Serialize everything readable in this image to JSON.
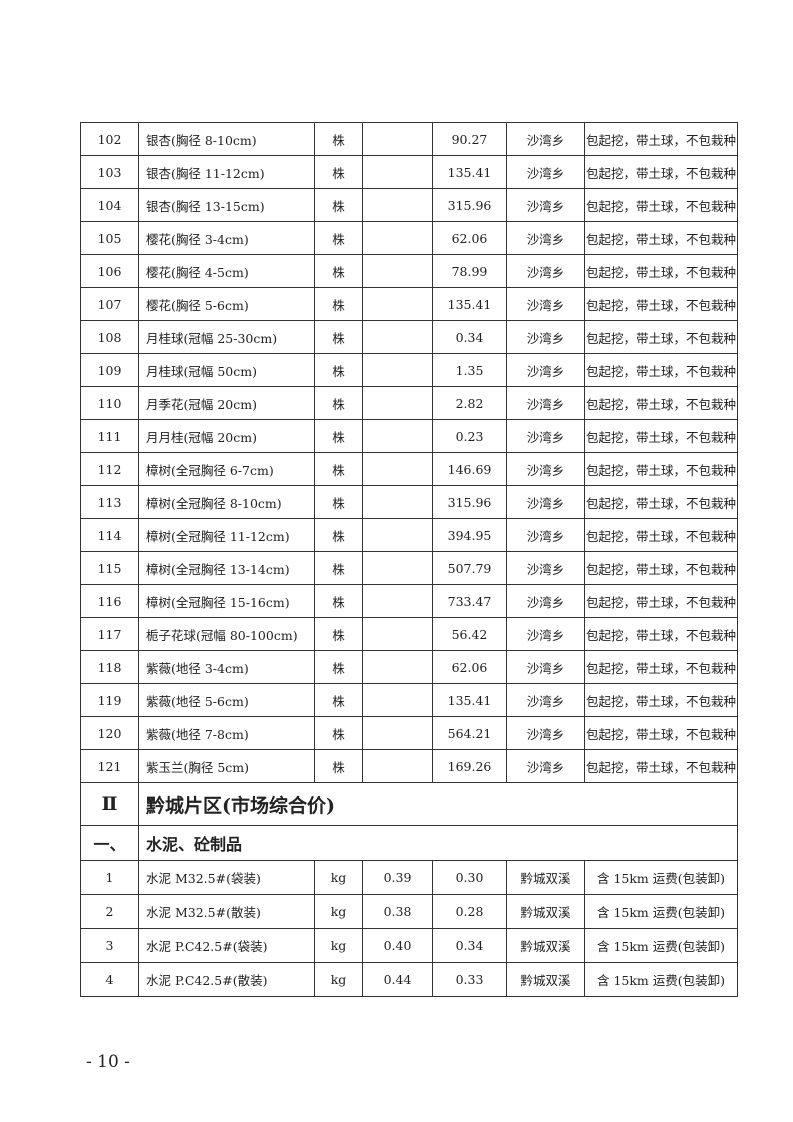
{
  "rows_a": [
    {
      "no": "102",
      "name": "银杏(胸径 8-10cm)",
      "unit": "株",
      "price1": "",
      "price2": "90.27",
      "place": "沙湾乡",
      "note": "包起挖，带土球，不包栽种"
    },
    {
      "no": "103",
      "name": "银杏(胸径 11-12cm)",
      "unit": "株",
      "price1": "",
      "price2": "135.41",
      "place": "沙湾乡",
      "note": "包起挖，带土球，不包栽种"
    },
    {
      "no": "104",
      "name": "银杏(胸径 13-15cm)",
      "unit": "株",
      "price1": "",
      "price2": "315.96",
      "place": "沙湾乡",
      "note": "包起挖，带土球，不包栽种"
    },
    {
      "no": "105",
      "name": "樱花(胸径 3-4cm)",
      "unit": "株",
      "price1": "",
      "price2": "62.06",
      "place": "沙湾乡",
      "note": "包起挖，带土球，不包栽种"
    },
    {
      "no": "106",
      "name": "樱花(胸径 4-5cm)",
      "unit": "株",
      "price1": "",
      "price2": "78.99",
      "place": "沙湾乡",
      "note": "包起挖，带土球，不包栽种"
    },
    {
      "no": "107",
      "name": "樱花(胸径 5-6cm)",
      "unit": "株",
      "price1": "",
      "price2": "135.41",
      "place": "沙湾乡",
      "note": "包起挖，带土球，不包栽种"
    },
    {
      "no": "108",
      "name": "月桂球(冠幅 25-30cm)",
      "unit": "株",
      "price1": "",
      "price2": "0.34",
      "place": "沙湾乡",
      "note": "包起挖，带土球，不包栽种"
    },
    {
      "no": "109",
      "name": "月桂球(冠幅 50cm)",
      "unit": "株",
      "price1": "",
      "price2": "1.35",
      "place": "沙湾乡",
      "note": "包起挖，带土球，不包栽种"
    },
    {
      "no": "110",
      "name": "月季花(冠幅 20cm)",
      "unit": "株",
      "price1": "",
      "price2": "2.82",
      "place": "沙湾乡",
      "note": "包起挖，带土球，不包栽种"
    },
    {
      "no": "111",
      "name": "月月桂(冠幅 20cm)",
      "unit": "株",
      "price1": "",
      "price2": "0.23",
      "place": "沙湾乡",
      "note": "包起挖，带土球，不包栽种"
    },
    {
      "no": "112",
      "name": "樟树(全冠胸径 6-7cm)",
      "unit": "株",
      "price1": "",
      "price2": "146.69",
      "place": "沙湾乡",
      "note": "包起挖，带土球，不包栽种"
    },
    {
      "no": "113",
      "name": "樟树(全冠胸径 8-10cm)",
      "unit": "株",
      "price1": "",
      "price2": "315.96",
      "place": "沙湾乡",
      "note": "包起挖，带土球，不包栽种"
    },
    {
      "no": "114",
      "name": "樟树(全冠胸径 11-12cm)",
      "unit": "株",
      "price1": "",
      "price2": "394.95",
      "place": "沙湾乡",
      "note": "包起挖，带土球，不包栽种"
    },
    {
      "no": "115",
      "name": "樟树(全冠胸径 13-14cm)",
      "unit": "株",
      "price1": "",
      "price2": "507.79",
      "place": "沙湾乡",
      "note": "包起挖，带土球，不包栽种"
    },
    {
      "no": "116",
      "name": "樟树(全冠胸径 15-16cm)",
      "unit": "株",
      "price1": "",
      "price2": "733.47",
      "place": "沙湾乡",
      "note": "包起挖，带土球，不包栽种"
    },
    {
      "no": "117",
      "name": "栀子花球(冠幅 80-100cm)",
      "unit": "株",
      "price1": "",
      "price2": "56.42",
      "place": "沙湾乡",
      "note": "包起挖，带土球，不包栽种"
    },
    {
      "no": "118",
      "name": "紫薇(地径 3-4cm)",
      "unit": "株",
      "price1": "",
      "price2": "62.06",
      "place": "沙湾乡",
      "note": "包起挖，带土球，不包栽种"
    },
    {
      "no": "119",
      "name": "紫薇(地径 5-6cm)",
      "unit": "株",
      "price1": "",
      "price2": "135.41",
      "place": "沙湾乡",
      "note": "包起挖，带土球，不包栽种"
    },
    {
      "no": "120",
      "name": "紫薇(地径 7-8cm)",
      "unit": "株",
      "price1": "",
      "price2": "564.21",
      "place": "沙湾乡",
      "note": "包起挖，带土球，不包栽种"
    },
    {
      "no": "121",
      "name": "紫玉兰(胸径 5cm)",
      "unit": "株",
      "price1": "",
      "price2": "169.26",
      "place": "沙湾乡",
      "note": "包起挖，带土球，不包栽种"
    }
  ],
  "section": {
    "no": "Ⅱ",
    "title": "黔城片区(市场综合价)"
  },
  "subsection": {
    "no": "一、",
    "title": "水泥、砼制品"
  },
  "rows_b": [
    {
      "no": "1",
      "name": "水泥 M32.5#(袋装)",
      "unit": "kg",
      "price1": "0.39",
      "price2": "0.30",
      "place": "黔城双溪",
      "note": "含 15km 运费(包装卸)"
    },
    {
      "no": "2",
      "name": "水泥 M32.5#(散装)",
      "unit": "kg",
      "price1": "0.38",
      "price2": "0.28",
      "place": "黔城双溪",
      "note": "含 15km 运费(包装卸)"
    },
    {
      "no": "3",
      "name": "水泥 P.C42.5#(袋装)",
      "unit": "kg",
      "price1": "0.40",
      "price2": "0.34",
      "place": "黔城双溪",
      "note": "含 15km 运费(包装卸)"
    },
    {
      "no": "4",
      "name": "水泥 P.C42.5#(散装)",
      "unit": "kg",
      "price1": "0.44",
      "price2": "0.33",
      "place": "黔城双溪",
      "note": "含 15km 运费(包装卸)"
    }
  ],
  "page_number": "- 10 -"
}
